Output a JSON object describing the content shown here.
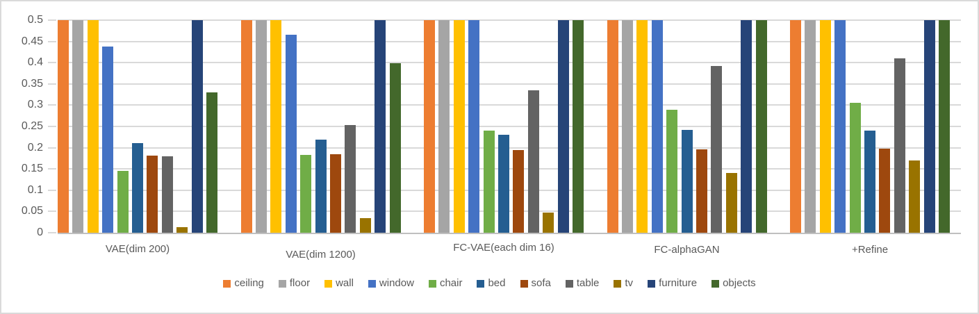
{
  "chart_data": {
    "type": "bar",
    "title": "",
    "xlabel": "",
    "ylabel": "",
    "ylim": [
      0,
      0.5
    ],
    "grid": true,
    "legend_position": "bottom",
    "y_ticks": [
      "0",
      "0.05",
      "0.1",
      "0.15",
      "0.2",
      "0.25",
      "0.3",
      "0.35",
      "0.4",
      "0.45",
      "0.5"
    ],
    "y_tick_values": [
      0,
      0.05,
      0.1,
      0.15,
      0.2,
      0.25,
      0.3,
      0.35,
      0.4,
      0.45,
      0.5
    ],
    "categories": [
      "VAE(dim 200)",
      "VAE(dim 1200)",
      "FC-VAE(each dim 16)",
      "FC-alphaGAN",
      "+Refine"
    ],
    "series": [
      {
        "name": "ceiling",
        "color": "#ED7D31",
        "values": [
          0.5,
          0.5,
          0.5,
          0.5,
          0.5
        ]
      },
      {
        "name": "floor",
        "color": "#A5A5A5",
        "values": [
          0.5,
          0.5,
          0.5,
          0.5,
          0.5
        ]
      },
      {
        "name": "wall",
        "color": "#FFC000",
        "values": [
          0.5,
          0.5,
          0.5,
          0.5,
          0.5
        ]
      },
      {
        "name": "window",
        "color": "#4472C4",
        "values": [
          0.438,
          0.466,
          0.5,
          0.5,
          0.5
        ]
      },
      {
        "name": "chair",
        "color": "#70AD47",
        "values": [
          0.145,
          0.183,
          0.241,
          0.289,
          0.306
        ]
      },
      {
        "name": "bed",
        "color": "#255E91",
        "values": [
          0.21,
          0.219,
          0.23,
          0.242,
          0.241
        ]
      },
      {
        "name": "sofa",
        "color": "#9E480E",
        "values": [
          0.181,
          0.185,
          0.194,
          0.196,
          0.197
        ]
      },
      {
        "name": "table",
        "color": "#636363",
        "values": [
          0.179,
          0.254,
          0.335,
          0.392,
          0.41
        ]
      },
      {
        "name": "tv",
        "color": "#997300",
        "values": [
          0.013,
          0.034,
          0.047,
          0.141,
          0.17
        ]
      },
      {
        "name": "furniture",
        "color": "#264478",
        "values": [
          0.5,
          0.5,
          0.5,
          0.5,
          0.5
        ]
      },
      {
        "name": "objects",
        "color": "#43682B",
        "values": [
          0.33,
          0.399,
          0.5,
          0.5,
          0.5
        ]
      }
    ],
    "colors": {
      "gridline": "#d9d9d9",
      "axis_line": "#bfbfbf",
      "tick_label": "#595959",
      "background": "#ffffff"
    }
  }
}
